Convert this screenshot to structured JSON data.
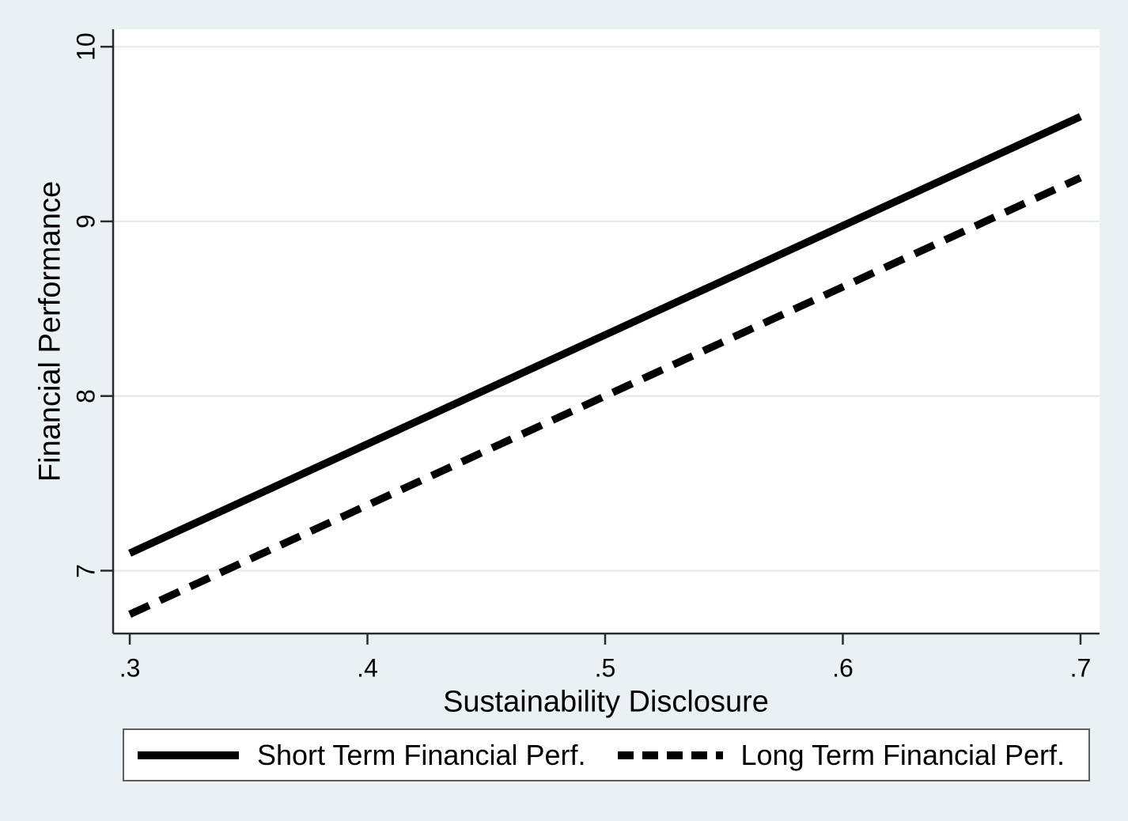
{
  "figure": {
    "palette": {
      "background": "#eaf1f5",
      "plot_background": "#ffffff",
      "grid": "#dfeaf2",
      "axis": "#2b2b2b",
      "series_color": "#000000",
      "legend_border": "#5f5f5f",
      "text": "#000000"
    }
  },
  "chart_data": {
    "type": "line",
    "title": "",
    "xlabel": "Sustainability Disclosure",
    "ylabel": "Financial Performance",
    "xlim": [
      0.293,
      0.708
    ],
    "ylim": [
      6.64,
      10.1
    ],
    "xticks": [
      0.3,
      0.4,
      0.5,
      0.6,
      0.7
    ],
    "xtick_labels": [
      ".3",
      ".4",
      ".5",
      ".6",
      ".7"
    ],
    "yticks": [
      7,
      8,
      9,
      10
    ],
    "ytick_labels": [
      "7",
      "8",
      "9",
      "10"
    ],
    "grid": "horizontal-only",
    "legend_position": "bottom",
    "series": [
      {
        "name": "Short Term Financial Perf.",
        "line_style": "solid",
        "x": [
          0.3,
          0.7
        ],
        "values": [
          7.1,
          9.6
        ]
      },
      {
        "name": "Long Term Financial Perf.",
        "line_style": "dashed",
        "x": [
          0.3,
          0.7
        ],
        "values": [
          6.75,
          9.25
        ]
      }
    ]
  }
}
